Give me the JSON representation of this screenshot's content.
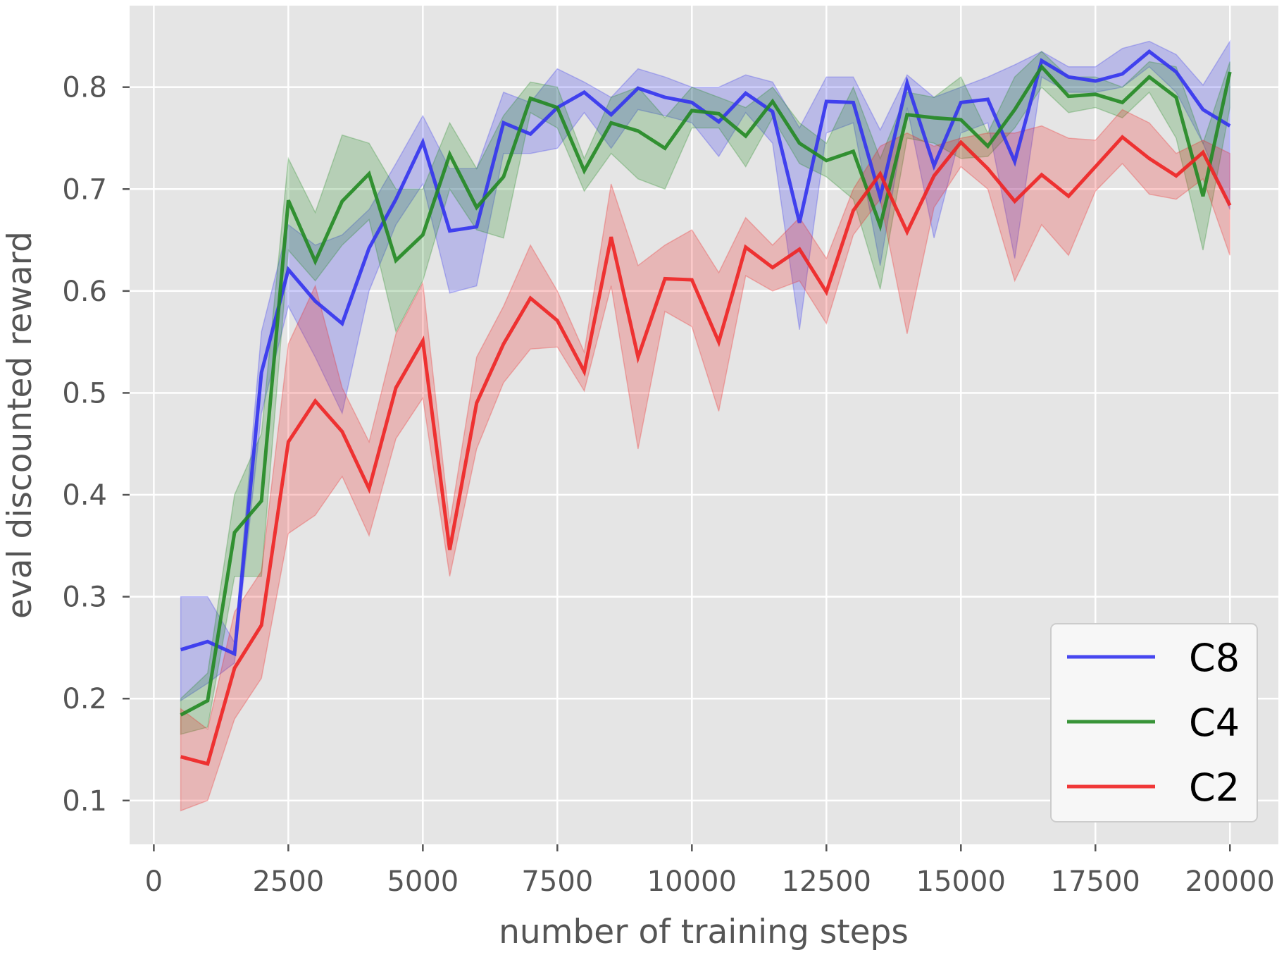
{
  "chart_data": {
    "type": "line",
    "title": "",
    "xlabel": "number of training steps",
    "ylabel": "eval discounted reward",
    "xlim": [
      -450,
      20900
    ],
    "ylim": [
      0.057,
      0.88
    ],
    "xticks": [
      0,
      2500,
      5000,
      7500,
      10000,
      12500,
      15000,
      17500,
      20000
    ],
    "yticks": [
      0.1,
      0.2,
      0.3,
      0.4,
      0.5,
      0.6,
      0.7,
      0.8
    ],
    "grid": true,
    "legend_position": "lower-right",
    "x": [
      500,
      1000,
      1500,
      2000,
      2500,
      3000,
      3500,
      4000,
      4500,
      5000,
      5500,
      6000,
      6500,
      7000,
      7500,
      8000,
      8500,
      9000,
      9500,
      10000,
      10500,
      11000,
      11500,
      12000,
      12500,
      13000,
      13500,
      14000,
      14500,
      15000,
      15500,
      16000,
      16500,
      17000,
      17500,
      18000,
      18500,
      19000,
      19500,
      20000
    ],
    "series": [
      {
        "name": "C8",
        "color": "#3333ee",
        "values": [
          0.248,
          0.256,
          0.244,
          0.52,
          0.621,
          0.59,
          0.568,
          0.642,
          0.69,
          0.746,
          0.659,
          0.663,
          0.765,
          0.754,
          0.78,
          0.795,
          0.773,
          0.799,
          0.79,
          0.785,
          0.766,
          0.794,
          0.776,
          0.667,
          0.786,
          0.785,
          0.692,
          0.804,
          0.723,
          0.785,
          0.788,
          0.727,
          0.826,
          0.81,
          0.806,
          0.813,
          0.835,
          0.815,
          0.778,
          0.762
        ],
        "lower": [
          0.198,
          0.215,
          0.235,
          0.48,
          0.585,
          0.535,
          0.48,
          0.6,
          0.665,
          0.705,
          0.598,
          0.605,
          0.735,
          0.735,
          0.74,
          0.775,
          0.74,
          0.778,
          0.772,
          0.765,
          0.732,
          0.775,
          0.745,
          0.562,
          0.755,
          0.765,
          0.625,
          0.78,
          0.652,
          0.755,
          0.765,
          0.632,
          0.81,
          0.795,
          0.795,
          0.8,
          0.82,
          0.795,
          0.745,
          0.68
        ],
        "upper": [
          0.3,
          0.3,
          0.255,
          0.56,
          0.665,
          0.645,
          0.655,
          0.68,
          0.725,
          0.772,
          0.72,
          0.72,
          0.795,
          0.785,
          0.818,
          0.805,
          0.79,
          0.818,
          0.81,
          0.8,
          0.8,
          0.812,
          0.805,
          0.76,
          0.81,
          0.81,
          0.758,
          0.812,
          0.79,
          0.8,
          0.81,
          0.822,
          0.835,
          0.82,
          0.82,
          0.838,
          0.845,
          0.832,
          0.802,
          0.845
        ]
      },
      {
        "name": "C4",
        "color": "#228822",
        "values": [
          0.184,
          0.198,
          0.363,
          0.394,
          0.689,
          0.629,
          0.688,
          0.715,
          0.63,
          0.655,
          0.734,
          0.682,
          0.712,
          0.789,
          0.78,
          0.718,
          0.765,
          0.757,
          0.74,
          0.777,
          0.774,
          0.752,
          0.786,
          0.745,
          0.728,
          0.737,
          0.664,
          0.773,
          0.77,
          0.768,
          0.742,
          0.778,
          0.82,
          0.791,
          0.793,
          0.785,
          0.81,
          0.79,
          0.693,
          0.815
        ],
        "lower": [
          0.165,
          0.172,
          0.32,
          0.32,
          0.64,
          0.61,
          0.645,
          0.67,
          0.56,
          0.61,
          0.7,
          0.66,
          0.652,
          0.775,
          0.76,
          0.698,
          0.735,
          0.71,
          0.7,
          0.76,
          0.76,
          0.722,
          0.77,
          0.725,
          0.712,
          0.69,
          0.602,
          0.75,
          0.745,
          0.73,
          0.732,
          0.76,
          0.8,
          0.775,
          0.78,
          0.77,
          0.795,
          0.75,
          0.64,
          0.78
        ],
        "upper": [
          0.2,
          0.225,
          0.4,
          0.46,
          0.73,
          0.677,
          0.753,
          0.745,
          0.7,
          0.7,
          0.765,
          0.72,
          0.772,
          0.805,
          0.8,
          0.73,
          0.79,
          0.8,
          0.77,
          0.8,
          0.79,
          0.78,
          0.8,
          0.765,
          0.745,
          0.8,
          0.73,
          0.795,
          0.79,
          0.81,
          0.755,
          0.81,
          0.835,
          0.81,
          0.81,
          0.8,
          0.825,
          0.82,
          0.745,
          0.825
        ]
      },
      {
        "name": "C2",
        "color": "#ee2222",
        "values": [
          0.143,
          0.136,
          0.23,
          0.272,
          0.452,
          0.492,
          0.462,
          0.406,
          0.505,
          0.551,
          0.346,
          0.49,
          0.548,
          0.593,
          0.571,
          0.521,
          0.653,
          0.535,
          0.612,
          0.611,
          0.55,
          0.643,
          0.623,
          0.641,
          0.599,
          0.679,
          0.715,
          0.658,
          0.713,
          0.746,
          0.72,
          0.688,
          0.714,
          0.693,
          0.722,
          0.751,
          0.73,
          0.713,
          0.736,
          0.684
        ],
        "lower": [
          0.09,
          0.1,
          0.18,
          0.22,
          0.362,
          0.38,
          0.418,
          0.36,
          0.455,
          0.495,
          0.32,
          0.445,
          0.51,
          0.543,
          0.545,
          0.502,
          0.605,
          0.445,
          0.58,
          0.565,
          0.482,
          0.615,
          0.6,
          0.61,
          0.568,
          0.655,
          0.69,
          0.558,
          0.682,
          0.722,
          0.7,
          0.61,
          0.665,
          0.635,
          0.698,
          0.725,
          0.695,
          0.69,
          0.71,
          0.635
        ],
        "upper": [
          0.19,
          0.17,
          0.285,
          0.325,
          0.548,
          0.605,
          0.505,
          0.452,
          0.558,
          0.608,
          0.372,
          0.535,
          0.585,
          0.645,
          0.6,
          0.54,
          0.705,
          0.625,
          0.645,
          0.66,
          0.618,
          0.672,
          0.645,
          0.672,
          0.632,
          0.7,
          0.742,
          0.755,
          0.742,
          0.75,
          0.755,
          0.755,
          0.762,
          0.75,
          0.748,
          0.778,
          0.765,
          0.735,
          0.748,
          0.735
        ]
      }
    ]
  }
}
